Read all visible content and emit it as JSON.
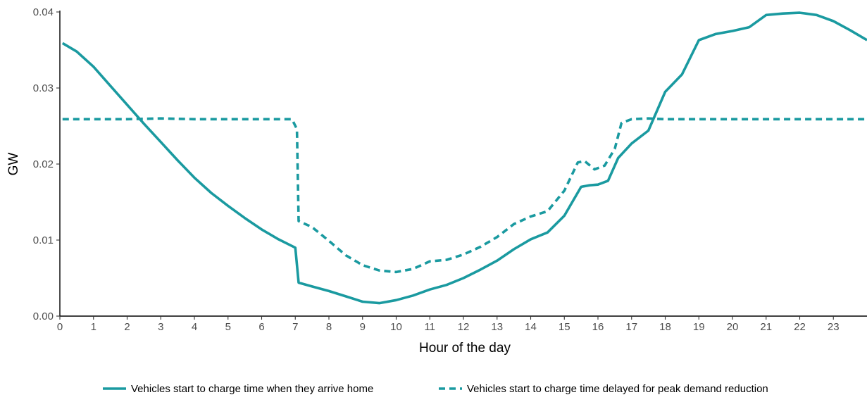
{
  "chart_data": {
    "type": "line",
    "title": "",
    "xlabel": "Hour of the day",
    "ylabel": "GW",
    "xlim": [
      0,
      24
    ],
    "ylim": [
      0,
      0.04
    ],
    "x_ticks": [
      0,
      1,
      2,
      3,
      4,
      5,
      6,
      7,
      8,
      9,
      10,
      11,
      12,
      13,
      14,
      15,
      16,
      17,
      18,
      19,
      20,
      21,
      22,
      23
    ],
    "x_tick_labels": [
      "0",
      "1",
      "2",
      "3",
      "4",
      "5",
      "6",
      "7",
      "8",
      "9",
      "10",
      "11",
      "12",
      "13",
      "14",
      "15",
      "16",
      "17",
      "18",
      "19",
      "20",
      "21",
      "22",
      "23"
    ],
    "y_ticks": [
      0,
      0.01,
      0.02,
      0.03,
      0.04
    ],
    "y_tick_labels": [
      "0.00",
      "0.01",
      "0.02",
      "0.03",
      "0.04"
    ],
    "grid": false,
    "legend_position": "bottom",
    "color": "#1a9aa0",
    "series": [
      {
        "name": "Vehicles start to charge time when they arrive home",
        "style": "solid",
        "points": [
          [
            0.08,
            0.0359
          ],
          [
            0.5,
            0.0348
          ],
          [
            1.0,
            0.0328
          ],
          [
            1.5,
            0.0303
          ],
          [
            2.0,
            0.0278
          ],
          [
            2.5,
            0.0253
          ],
          [
            3.0,
            0.0229
          ],
          [
            3.5,
            0.0205
          ],
          [
            4.0,
            0.0182
          ],
          [
            4.5,
            0.0162
          ],
          [
            5.0,
            0.0145
          ],
          [
            5.5,
            0.0129
          ],
          [
            6.0,
            0.0114
          ],
          [
            6.5,
            0.0101
          ],
          [
            7.0,
            0.009
          ],
          [
            7.1,
            0.0044
          ],
          [
            7.5,
            0.0039
          ],
          [
            8.0,
            0.0033
          ],
          [
            8.5,
            0.0026
          ],
          [
            9.0,
            0.0019
          ],
          [
            9.5,
            0.0017
          ],
          [
            10.0,
            0.0021
          ],
          [
            10.5,
            0.0027
          ],
          [
            11.0,
            0.0035
          ],
          [
            11.5,
            0.0041
          ],
          [
            12.0,
            0.005
          ],
          [
            12.5,
            0.0061
          ],
          [
            13.0,
            0.0073
          ],
          [
            13.5,
            0.0088
          ],
          [
            14.0,
            0.0101
          ],
          [
            14.5,
            0.011
          ],
          [
            15.0,
            0.0132
          ],
          [
            15.5,
            0.017
          ],
          [
            15.75,
            0.0172
          ],
          [
            16.0,
            0.0173
          ],
          [
            16.3,
            0.0178
          ],
          [
            16.6,
            0.0208
          ],
          [
            17.0,
            0.0227
          ],
          [
            17.5,
            0.0244
          ],
          [
            18.0,
            0.0295
          ],
          [
            18.5,
            0.0318
          ],
          [
            19.0,
            0.0363
          ],
          [
            19.5,
            0.0371
          ],
          [
            20.0,
            0.0375
          ],
          [
            20.5,
            0.038
          ],
          [
            21.0,
            0.0396
          ],
          [
            21.5,
            0.0398
          ],
          [
            22.0,
            0.0399
          ],
          [
            22.5,
            0.0396
          ],
          [
            23.0,
            0.0388
          ],
          [
            23.5,
            0.0376
          ],
          [
            24.0,
            0.0363
          ]
        ]
      },
      {
        "name": "Vehicles start to charge time delayed for peak demand reduction",
        "style": "dashed",
        "points": [
          [
            0.08,
            0.0259
          ],
          [
            1.0,
            0.0259
          ],
          [
            2.0,
            0.0259
          ],
          [
            3.0,
            0.026
          ],
          [
            4.0,
            0.0259
          ],
          [
            5.0,
            0.0259
          ],
          [
            6.0,
            0.0259
          ],
          [
            6.9,
            0.0259
          ],
          [
            7.05,
            0.0246
          ],
          [
            7.1,
            0.0125
          ],
          [
            7.5,
            0.0117
          ],
          [
            8.0,
            0.0099
          ],
          [
            8.5,
            0.008
          ],
          [
            9.0,
            0.0067
          ],
          [
            9.5,
            0.006
          ],
          [
            10.0,
            0.0058
          ],
          [
            10.5,
            0.0062
          ],
          [
            11.0,
            0.0072
          ],
          [
            11.5,
            0.0074
          ],
          [
            12.0,
            0.0081
          ],
          [
            12.5,
            0.0091
          ],
          [
            13.0,
            0.0104
          ],
          [
            13.5,
            0.0121
          ],
          [
            14.0,
            0.0131
          ],
          [
            14.5,
            0.0138
          ],
          [
            15.0,
            0.0165
          ],
          [
            15.4,
            0.0202
          ],
          [
            15.6,
            0.0204
          ],
          [
            15.9,
            0.0193
          ],
          [
            16.2,
            0.0198
          ],
          [
            16.5,
            0.022
          ],
          [
            16.7,
            0.0254
          ],
          [
            17.0,
            0.0259
          ],
          [
            17.5,
            0.026
          ],
          [
            18.0,
            0.0259
          ],
          [
            19.0,
            0.0259
          ],
          [
            20.0,
            0.0259
          ],
          [
            21.0,
            0.0259
          ],
          [
            22.0,
            0.0259
          ],
          [
            23.0,
            0.0259
          ],
          [
            24.0,
            0.0259
          ]
        ]
      }
    ]
  }
}
